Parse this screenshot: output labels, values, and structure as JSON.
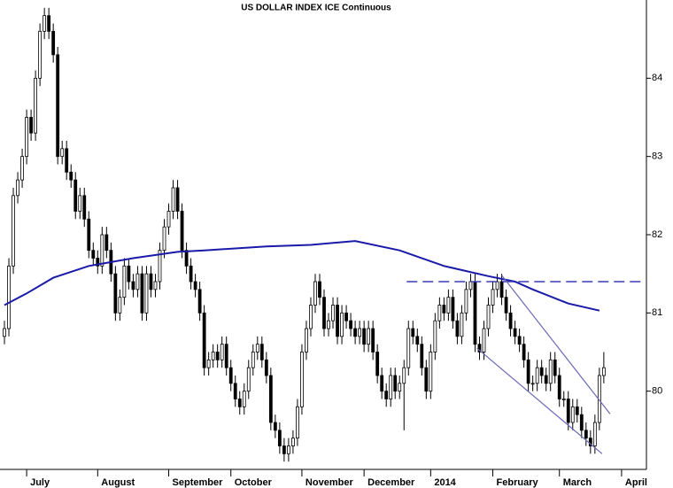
{
  "chart_data": {
    "type": "candlestick",
    "title": "US DOLLAR INDEX ICE Continuous",
    "ylim": [
      79.0,
      85.0
    ],
    "yticks": [
      80,
      81,
      82,
      83,
      84
    ],
    "xlim": [
      -1,
      144.6
    ],
    "xticks": [
      {
        "value": 5,
        "label": "July"
      },
      {
        "value": 21,
        "label": "August"
      },
      {
        "value": 37,
        "label": "September"
      },
      {
        "value": 51,
        "label": "October"
      },
      {
        "value": 67,
        "label": "November"
      },
      {
        "value": 81,
        "label": "December"
      },
      {
        "value": 96,
        "label": "2014"
      },
      {
        "value": 110,
        "label": "February"
      },
      {
        "value": 125,
        "label": "March"
      },
      {
        "value": 139,
        "label": "April"
      }
    ],
    "up_color": "#ffffff",
    "down_color": "#000000",
    "open": [
      80.7,
      80.8,
      81.6,
      82.5,
      82.7,
      83.0,
      83.5,
      83.3,
      84.0,
      84.6,
      84.8,
      84.6,
      84.3,
      83.0,
      83.1,
      82.8,
      82.7,
      82.3,
      82.5,
      82.2,
      81.8,
      81.7,
      81.6,
      82.0,
      81.8,
      81.5,
      81.0,
      81.2,
      81.6,
      81.4,
      81.3,
      81.5,
      81.0,
      81.5,
      81.3,
      81.4,
      81.8,
      82.1,
      82.3,
      82.6,
      82.3,
      81.8,
      81.6,
      81.4,
      81.3,
      81.0,
      80.3,
      80.4,
      80.5,
      80.4,
      80.6,
      80.3,
      80.1,
      79.9,
      79.8,
      80.0,
      80.3,
      80.5,
      80.6,
      80.4,
      80.2,
      79.6,
      79.5,
      79.3,
      79.2,
      79.3,
      79.4,
      79.8,
      80.5,
      80.8,
      81.1,
      81.4,
      81.2,
      80.8,
      80.9,
      81.1,
      80.7,
      81.0,
      80.9,
      80.8,
      80.7,
      80.8,
      80.6,
      80.8,
      80.5,
      80.2,
      80.0,
      79.9,
      80.2,
      80.0,
      80.1,
      80.3,
      80.8,
      80.7,
      80.6,
      80.3,
      80.0,
      80.5,
      80.9,
      81.1,
      81.0,
      81.2,
      80.9,
      80.7,
      81.0,
      81.3,
      81.4,
      80.6,
      80.5,
      80.8,
      81.1,
      81.3,
      81.4,
      81.2,
      81.0,
      80.8,
      80.7,
      80.6,
      80.4,
      80.1,
      80.1,
      80.3,
      80.2,
      80.1,
      80.4,
      80.2,
      79.9,
      79.9,
      79.6,
      79.8,
      79.7,
      79.5,
      79.4,
      79.3,
      79.6,
      80.2
    ],
    "high": [
      80.9,
      81.7,
      82.6,
      82.8,
      83.1,
      83.6,
      83.6,
      84.1,
      84.7,
      84.9,
      84.9,
      84.7,
      84.4,
      83.2,
      83.2,
      82.9,
      82.8,
      82.6,
      82.6,
      82.3,
      81.9,
      81.8,
      82.1,
      82.1,
      81.9,
      81.6,
      81.3,
      81.7,
      81.7,
      81.5,
      81.6,
      81.6,
      81.6,
      81.6,
      81.5,
      81.9,
      82.2,
      82.4,
      82.7,
      82.7,
      82.4,
      81.9,
      81.7,
      81.5,
      81.4,
      81.1,
      80.5,
      80.6,
      80.6,
      80.7,
      80.7,
      80.4,
      80.2,
      80.0,
      80.1,
      80.4,
      80.6,
      80.7,
      80.7,
      80.5,
      80.3,
      79.7,
      79.6,
      79.4,
      79.4,
      79.5,
      79.9,
      80.6,
      80.9,
      81.2,
      81.5,
      81.5,
      81.3,
      81.0,
      81.2,
      81.2,
      81.1,
      81.1,
      81.0,
      80.9,
      80.9,
      80.9,
      80.9,
      80.9,
      80.6,
      80.3,
      80.1,
      80.3,
      80.3,
      80.2,
      80.4,
      80.9,
      80.9,
      80.8,
      80.7,
      80.4,
      80.6,
      81.0,
      81.2,
      81.2,
      81.3,
      81.3,
      81.0,
      81.1,
      81.4,
      81.5,
      81.5,
      80.7,
      80.9,
      81.2,
      81.4,
      81.5,
      81.5,
      81.3,
      81.1,
      80.9,
      80.8,
      80.7,
      80.5,
      80.2,
      80.4,
      80.4,
      80.3,
      80.5,
      80.5,
      80.3,
      80.0,
      80.0,
      79.9,
      79.9,
      79.8,
      79.6,
      79.5,
      79.7,
      80.3,
      80.5
    ],
    "low": [
      80.6,
      80.7,
      81.5,
      82.4,
      82.6,
      82.9,
      83.2,
      83.2,
      83.9,
      84.5,
      84.5,
      84.2,
      82.9,
      82.9,
      82.7,
      82.6,
      82.2,
      82.2,
      82.1,
      81.7,
      81.6,
      81.5,
      81.5,
      81.7,
      81.4,
      80.9,
      80.9,
      81.1,
      81.3,
      81.2,
      81.2,
      80.9,
      80.9,
      81.2,
      81.2,
      81.3,
      81.7,
      82.0,
      82.2,
      82.2,
      81.7,
      81.5,
      81.3,
      81.2,
      80.9,
      80.2,
      80.2,
      80.3,
      80.3,
      80.3,
      80.2,
      80.0,
      79.8,
      79.7,
      79.7,
      79.9,
      80.2,
      80.4,
      80.3,
      80.1,
      79.5,
      79.4,
      79.2,
      79.1,
      79.1,
      79.2,
      79.3,
      79.7,
      80.4,
      80.7,
      81.0,
      81.1,
      80.7,
      80.7,
      80.8,
      80.6,
      80.6,
      80.8,
      80.7,
      80.6,
      80.6,
      80.5,
      80.5,
      80.4,
      80.1,
      79.9,
      79.8,
      79.8,
      79.9,
      79.9,
      79.5,
      80.2,
      80.6,
      80.5,
      80.2,
      79.9,
      79.9,
      80.4,
      80.8,
      80.9,
      80.9,
      80.8,
      80.6,
      80.6,
      80.9,
      81.2,
      80.5,
      80.4,
      80.4,
      80.7,
      81.0,
      81.2,
      81.1,
      80.9,
      80.7,
      80.6,
      80.5,
      80.3,
      80.0,
      80.0,
      80.0,
      80.1,
      80.0,
      80.0,
      80.1,
      79.8,
      79.8,
      79.5,
      79.5,
      79.6,
      79.4,
      79.3,
      79.2,
      79.2,
      79.5,
      80.1
    ],
    "close": [
      80.8,
      81.6,
      82.5,
      82.7,
      83.0,
      83.5,
      83.3,
      84.0,
      84.6,
      84.8,
      84.6,
      84.3,
      83.0,
      83.1,
      82.8,
      82.7,
      82.3,
      82.5,
      82.2,
      81.8,
      81.7,
      81.6,
      82.0,
      81.8,
      81.5,
      81.0,
      81.2,
      81.6,
      81.4,
      81.3,
      81.5,
      81.0,
      81.5,
      81.3,
      81.4,
      81.8,
      82.1,
      82.3,
      82.6,
      82.3,
      81.8,
      81.6,
      81.4,
      81.3,
      81.0,
      80.3,
      80.4,
      80.5,
      80.4,
      80.6,
      80.3,
      80.1,
      79.9,
      79.8,
      80.0,
      80.3,
      80.5,
      80.6,
      80.4,
      80.2,
      79.6,
      79.5,
      79.3,
      79.2,
      79.3,
      79.4,
      79.8,
      80.5,
      80.8,
      81.1,
      81.4,
      81.2,
      80.8,
      80.9,
      81.1,
      80.7,
      81.0,
      80.9,
      80.8,
      80.7,
      80.8,
      80.6,
      80.8,
      80.5,
      80.2,
      80.0,
      79.9,
      80.2,
      80.0,
      80.1,
      80.3,
      80.8,
      80.7,
      80.6,
      80.3,
      80.0,
      80.5,
      80.9,
      81.1,
      81.0,
      81.2,
      80.9,
      80.7,
      81.0,
      81.3,
      81.4,
      80.6,
      80.5,
      80.8,
      81.1,
      81.3,
      81.4,
      81.2,
      81.0,
      80.8,
      80.7,
      80.6,
      80.4,
      80.1,
      80.1,
      80.3,
      80.2,
      80.1,
      80.4,
      80.2,
      79.9,
      79.9,
      79.6,
      79.8,
      79.7,
      79.5,
      79.4,
      79.3,
      79.6,
      80.2,
      80.3
    ],
    "ma": {
      "color": "#1a1aa8",
      "x": [
        0,
        5,
        11,
        19,
        29,
        39,
        45,
        59,
        69,
        79,
        89,
        99,
        109,
        115,
        119,
        127,
        134
      ],
      "values": [
        81.1,
        81.25,
        81.45,
        81.6,
        81.7,
        81.78,
        81.8,
        81.85,
        81.87,
        81.92,
        81.8,
        81.6,
        81.47,
        81.4,
        81.3,
        81.12,
        81.03
      ]
    },
    "resistance": {
      "color": "#3a3ab8",
      "value": 81.4,
      "x": [
        90.6,
        144.6
      ]
    },
    "channel": [
      {
        "color": "#6a6ab8",
        "x": [
          112,
          136.4
        ],
        "values": [
          81.48,
          79.71
        ]
      },
      {
        "color": "#6a6ab8",
        "x": [
          106.4,
          134.6
        ],
        "values": [
          80.55,
          79.2
        ]
      }
    ]
  }
}
